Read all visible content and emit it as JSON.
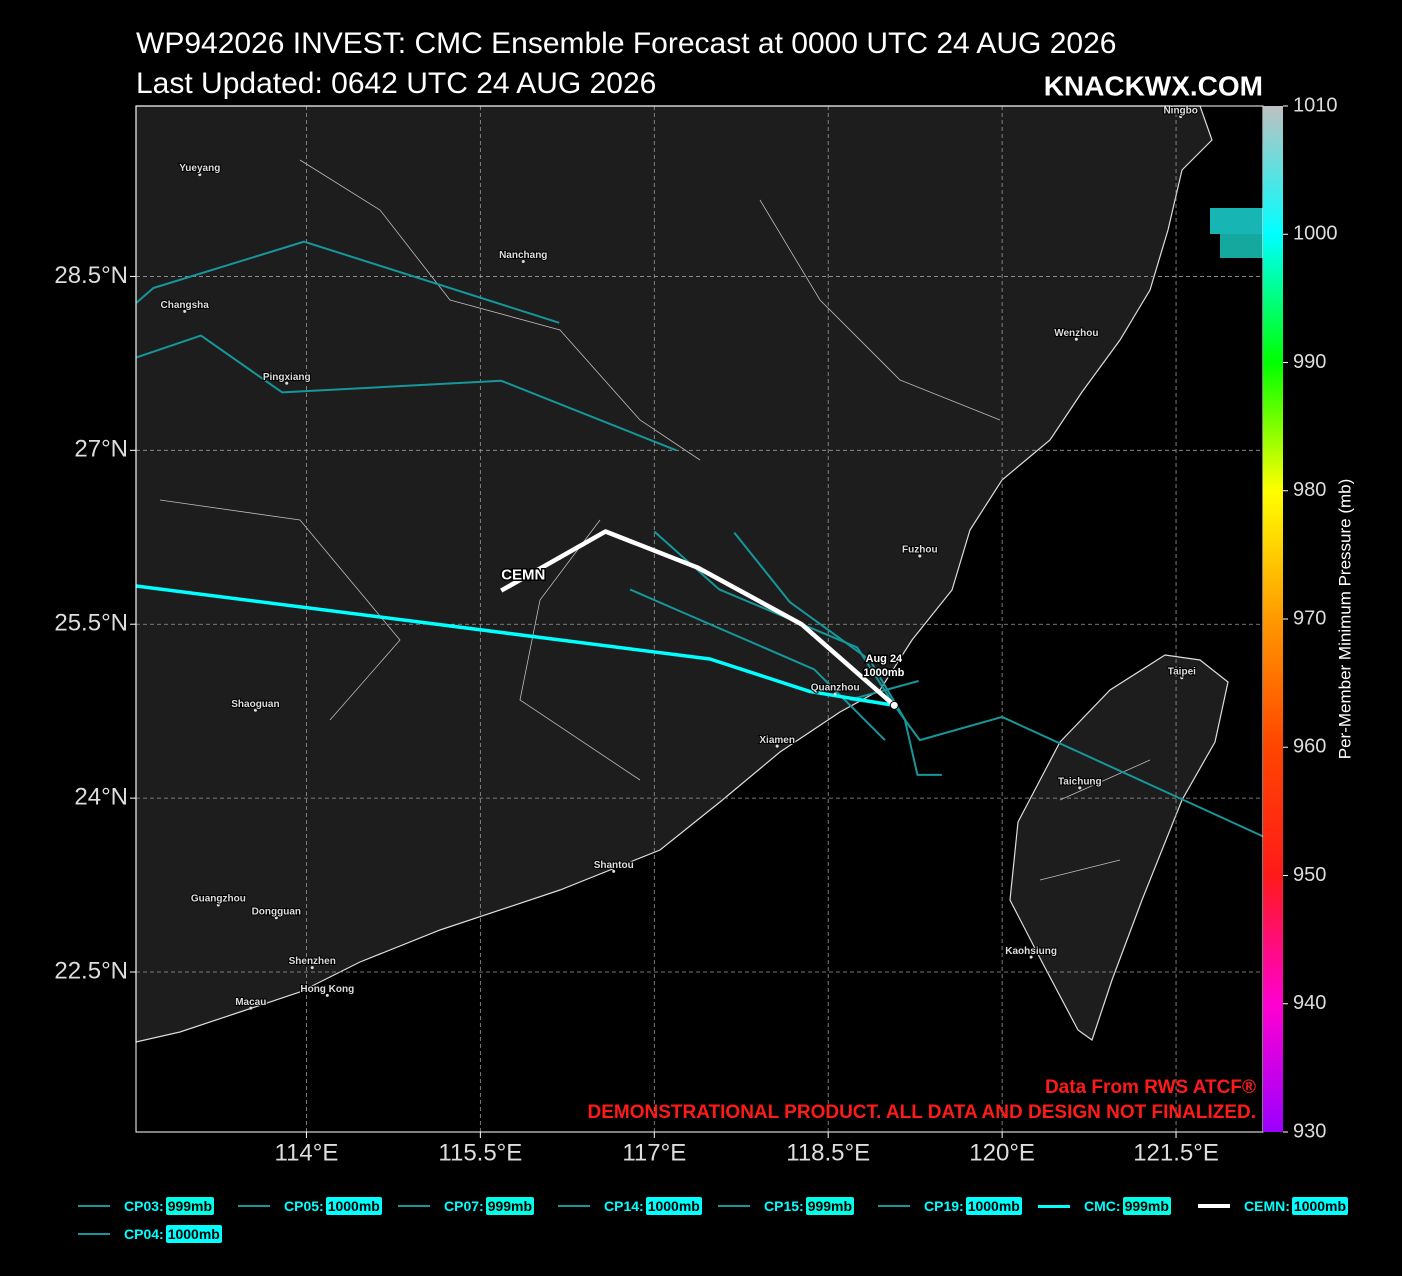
{
  "chart_data": {
    "type": "track_map",
    "title": "WP942026 INVEST: CMC Ensemble Forecast at 0000 UTC 24 AUG 2026",
    "subtitle": "Last Updated: 0642 UTC 24 AUG 2026",
    "brand": "KNACKWX.COM",
    "source_note": "Data From RWS ATCF®",
    "disclaimer": "DEMONSTRATIONAL PRODUCT. ALL DATA AND DESIGN NOT FINALIZED.",
    "xlim": [
      112.53,
      122.25
    ],
    "ylim": [
      21.12,
      29.97
    ],
    "xticks": [
      {
        "value": 114,
        "label": "114°E"
      },
      {
        "value": 115.5,
        "label": "115.5°E"
      },
      {
        "value": 117,
        "label": "117°E"
      },
      {
        "value": 118.5,
        "label": "118.5°E"
      },
      {
        "value": 120,
        "label": "120°E"
      },
      {
        "value": 121.5,
        "label": "121.5°E"
      }
    ],
    "yticks": [
      {
        "value": 22.5,
        "label": "22.5°N"
      },
      {
        "value": 24,
        "label": "24°N"
      },
      {
        "value": 25.5,
        "label": "25.5°N"
      },
      {
        "value": 27,
        "label": "27°N"
      },
      {
        "value": 28.5,
        "label": "28.5°N"
      }
    ],
    "grid": true,
    "colorbar": {
      "label": "Per-Member Minimum Pressure (mb)",
      "lim": [
        930,
        1010
      ],
      "ticks": [
        930,
        940,
        950,
        960,
        970,
        980,
        990,
        1000,
        1010
      ],
      "colors": [
        "#9b00ff",
        "#ff00d0",
        "#ff1a1a",
        "#ff4500",
        "#ff9900",
        "#ffff00",
        "#00ff00",
        "#00ffff",
        "#c0c0c0"
      ]
    },
    "series": [
      {
        "name": "CP03",
        "color": "#16979b",
        "width": 2,
        "lon": [
          112.53,
          112.68,
          113.98,
          116.18
        ],
        "lat": [
          28.27,
          28.4,
          28.8,
          28.1
        ],
        "min_pressure": 999,
        "min_pressure_label": "999mb"
      },
      {
        "name": "CP05",
        "color": "#16979b",
        "width": 2,
        "lon": [
          112.53,
          113.09,
          113.79,
          115.68,
          117.19
        ],
        "lat": [
          27.8,
          27.99,
          27.5,
          27.6,
          27.0
        ],
        "min_pressure": 1000,
        "min_pressure_label": "1000mb"
      },
      {
        "name": "CP07",
        "color": "#16979b",
        "width": 2,
        "lon": [
          117.0,
          117.56,
          118.75,
          119.07
        ],
        "lat": [
          26.3,
          25.8,
          25.3,
          24.8
        ],
        "min_pressure": 999,
        "min_pressure_label": "999mb"
      },
      {
        "name": "CP14",
        "color": "#16979b",
        "width": 2,
        "lon": [
          117.69,
          118.17,
          118.86,
          119.16,
          119.27,
          119.48
        ],
        "lat": [
          26.29,
          25.69,
          25.19,
          24.68,
          24.2,
          24.2
        ],
        "min_pressure": 1000,
        "min_pressure_label": "1000mb"
      },
      {
        "name": "CP15",
        "color": "#16979b",
        "width": 2,
        "lon": [
          116.79,
          117.18,
          118.38,
          118.99
        ],
        "lat": [
          25.8,
          25.63,
          25.11,
          24.5
        ],
        "min_pressure": 999,
        "min_pressure_label": "999mb"
      },
      {
        "name": "CP19",
        "color": "#16979b",
        "width": 2,
        "lon": [
          119.07,
          119.29,
          120.0,
          122.25
        ],
        "lat": [
          24.8,
          24.5,
          24.7,
          23.67
        ],
        "min_pressure": 1000,
        "min_pressure_label": "1000mb"
      },
      {
        "name": "CMC",
        "color": "#00ffff",
        "width": 3.5,
        "lon": [
          112.53,
          117.48,
          118.34,
          119.07
        ],
        "lat": [
          25.83,
          25.2,
          24.92,
          24.8
        ],
        "min_pressure": 999,
        "min_pressure_label": "999mb"
      },
      {
        "name": "CEMN",
        "color": "#ffffff",
        "width": 4.5,
        "lon": [
          115.68,
          116.58,
          117.37,
          118.27,
          119.07
        ],
        "lat": [
          25.79,
          26.3,
          25.99,
          25.5,
          24.8
        ],
        "min_pressure": 1000,
        "min_pressure_label": "1000mb"
      },
      {
        "name": "CP04",
        "color": "#16979b",
        "width": 2,
        "lon": [
          119.07,
          118.69,
          119.28
        ],
        "lat": [
          24.8,
          24.85,
          25.01
        ],
        "min_pressure": 1000,
        "min_pressure_label": "1000mb"
      }
    ],
    "cities": [
      {
        "name": "Yueyang",
        "lon": 113.08,
        "lat": 29.43
      },
      {
        "name": "Changsha",
        "lon": 112.95,
        "lat": 28.25
      },
      {
        "name": "Nanchang",
        "lon": 115.87,
        "lat": 28.68
      },
      {
        "name": "Pingxiang",
        "lon": 113.83,
        "lat": 27.63
      },
      {
        "name": "Wenzhou",
        "lon": 120.64,
        "lat": 28.01
      },
      {
        "name": "Ningbo",
        "lon": 121.54,
        "lat": 29.93
      },
      {
        "name": "Fuzhou",
        "lon": 119.29,
        "lat": 26.14
      },
      {
        "name": "Quanzhou",
        "lon": 118.56,
        "lat": 24.95
      },
      {
        "name": "Xiamen",
        "lon": 118.06,
        "lat": 24.5
      },
      {
        "name": "Shaoguan",
        "lon": 113.56,
        "lat": 24.81
      },
      {
        "name": "Taipei",
        "lon": 121.55,
        "lat": 25.09
      },
      {
        "name": "Taichung",
        "lon": 120.67,
        "lat": 24.14
      },
      {
        "name": "Shantou",
        "lon": 116.65,
        "lat": 23.42
      },
      {
        "name": "Guangzhou",
        "lon": 113.24,
        "lat": 23.13
      },
      {
        "name": "Dongguan",
        "lon": 113.74,
        "lat": 23.02
      },
      {
        "name": "Shenzhen",
        "lon": 114.05,
        "lat": 22.59
      },
      {
        "name": "Hong Kong",
        "lon": 114.18,
        "lat": 22.35
      },
      {
        "name": "Macau",
        "lon": 113.52,
        "lat": 22.24
      },
      {
        "name": "Kaohsiung",
        "lon": 120.25,
        "lat": 22.68
      }
    ],
    "annotations": [
      {
        "text": "CEMN",
        "lon": 115.68,
        "lat": 25.92
      },
      {
        "text": "Aug 24",
        "lon": 118.98,
        "lat": 25.2
      },
      {
        "text": "1000mb",
        "lon": 118.98,
        "lat": 25.08
      }
    ]
  }
}
